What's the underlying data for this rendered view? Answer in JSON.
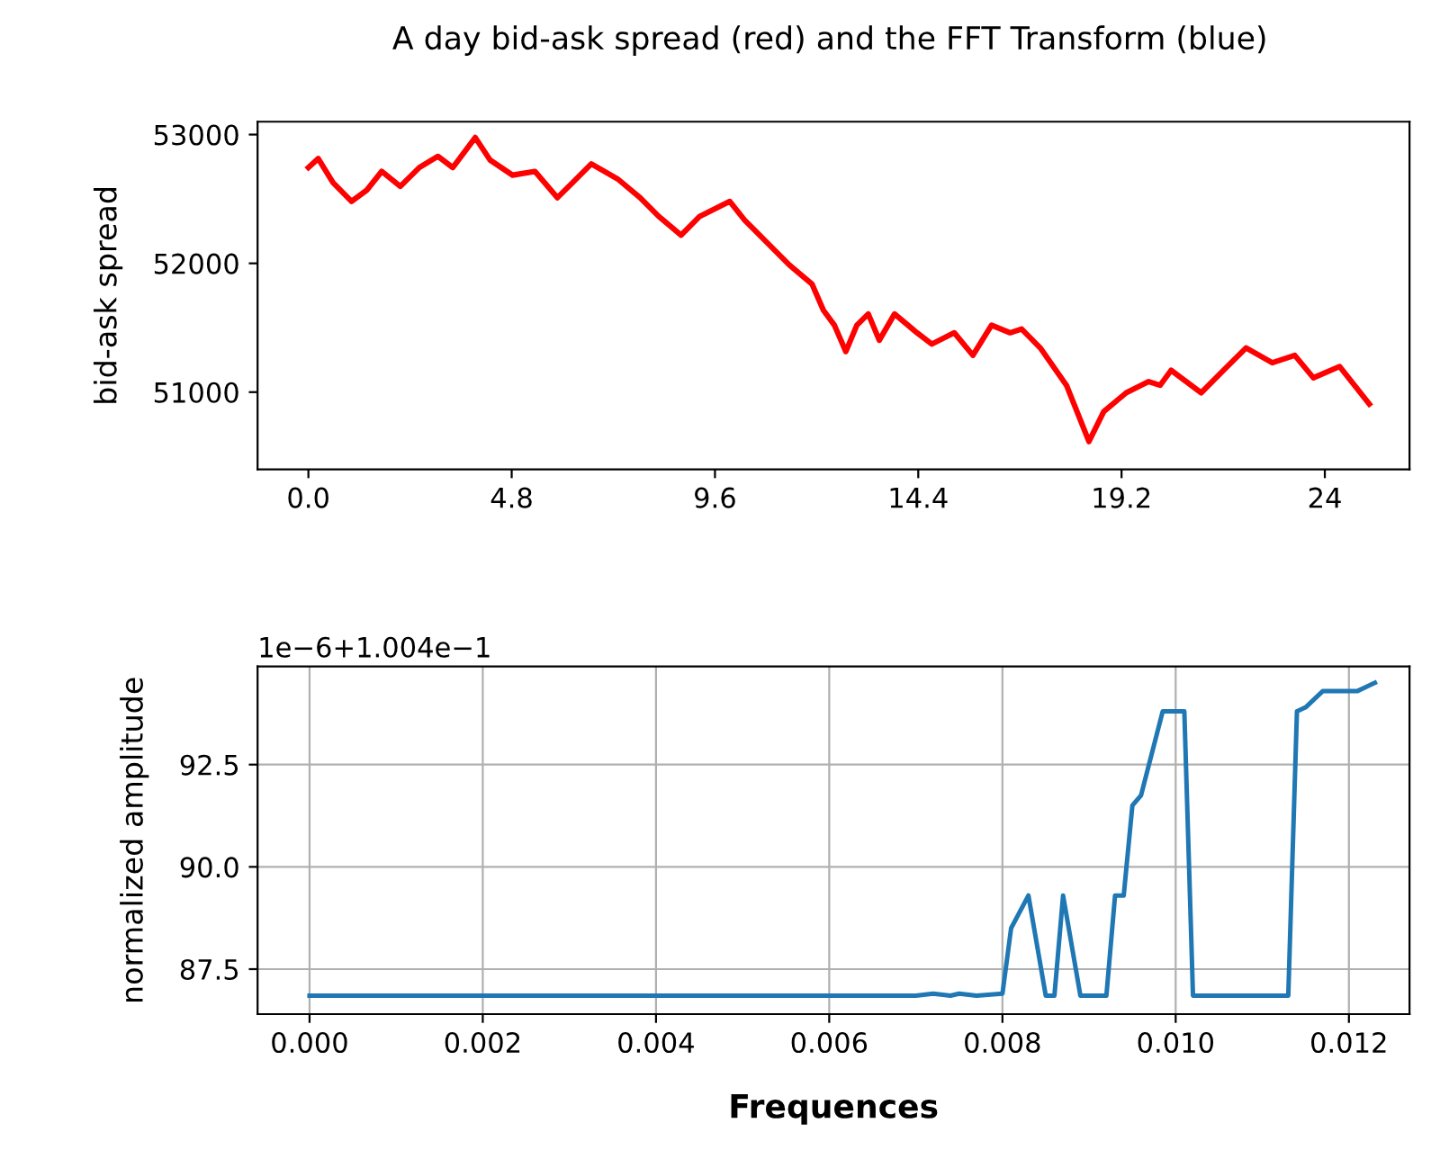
{
  "chart_data": [
    {
      "type": "line",
      "title": "A day bid-ask spread (red) and the FFT Transform (blue)",
      "ylabel": "bid-ask spread",
      "x": [
        0,
        0.23,
        0.58,
        1.02,
        1.38,
        1.73,
        2.17,
        2.62,
        3.06,
        3.41,
        3.94,
        4.29,
        4.82,
        5.35,
        5.88,
        6.24,
        6.68,
        7.3,
        7.83,
        8.27,
        8.8,
        9.24,
        9.95,
        10.3,
        10.83,
        11.36,
        11.89,
        12.16,
        12.42,
        12.69,
        12.95,
        13.22,
        13.48,
        13.84,
        14.37,
        14.72,
        15.25,
        15.69,
        16.13,
        16.57,
        16.84,
        17.28,
        17.9,
        18.43,
        18.78,
        19.31,
        19.84,
        20.11,
        20.37,
        21.08,
        21.61,
        22.14,
        22.76,
        23.29,
        23.73,
        24.35,
        25.05
      ],
      "series": [
        {
          "color": "#ff0000",
          "values": [
            52744,
            52814,
            52627,
            52481,
            52569,
            52714,
            52598,
            52744,
            52831,
            52744,
            52977,
            52802,
            52685,
            52714,
            52510,
            52627,
            52773,
            52656,
            52510,
            52365,
            52219,
            52365,
            52481,
            52336,
            52161,
            51986,
            51840,
            51636,
            51520,
            51315,
            51520,
            51607,
            51403,
            51607,
            51461,
            51373,
            51461,
            51286,
            51520,
            51461,
            51490,
            51344,
            51053,
            50616,
            50849,
            50995,
            51082,
            51053,
            51170,
            50995,
            51170,
            51344,
            51228,
            51286,
            51111,
            51199,
            50907
          ]
        }
      ],
      "xlim": [
        -1.2,
        26.0
      ],
      "xticks": [
        {
          "value": 0,
          "label": "0.0"
        },
        4.8,
        9.6,
        14.4,
        19.2,
        24
      ],
      "ylim": [
        50400,
        53100
      ],
      "yticks": [
        51000,
        52000,
        53000
      ],
      "grid": false
    },
    {
      "type": "line",
      "xlabel": "Frequences",
      "ylabel": "normalized amplitude",
      "annotations": [
        "1e−6+1.004e−1"
      ],
      "x": [
        0,
        0.007,
        0.0072,
        0.0074,
        0.0075,
        0.0077,
        0.008,
        0.0081,
        0.0083,
        0.0085,
        0.0086,
        0.0087,
        0.0089,
        0.0092,
        0.0093,
        0.0094,
        0.0095,
        0.0096,
        0.00985,
        0.0101,
        0.0102,
        0.0113,
        0.0114,
        0.0115,
        0.0117,
        0.0121,
        0.0123
      ],
      "series": [
        {
          "color": "#1f77b4",
          "values": [
            86.85,
            86.85,
            86.9,
            86.85,
            86.9,
            86.85,
            86.9,
            88.5,
            89.3,
            86.85,
            86.85,
            89.3,
            86.85,
            86.85,
            89.3,
            89.3,
            91.5,
            91.75,
            93.8,
            93.8,
            86.85,
            86.85,
            93.8,
            93.9,
            94.3,
            94.3,
            94.5
          ]
        }
      ],
      "xlim": [
        -0.0006,
        0.0127
      ],
      "xticks": [
        {
          "value": 0,
          "label": "0.000"
        },
        {
          "value": 0.002,
          "label": "0.002"
        },
        {
          "value": 0.004,
          "label": "0.004"
        },
        {
          "value": 0.006,
          "label": "0.006"
        },
        {
          "value": 0.008,
          "label": "0.008"
        },
        {
          "value": 0.01,
          "label": "0.010"
        },
        {
          "value": 0.012,
          "label": "0.012"
        }
      ],
      "ylim": [
        86.4,
        94.9
      ],
      "yticks": [
        87.5,
        {
          "value": 90,
          "label": "90.0"
        },
        92.5
      ],
      "grid": true
    }
  ]
}
